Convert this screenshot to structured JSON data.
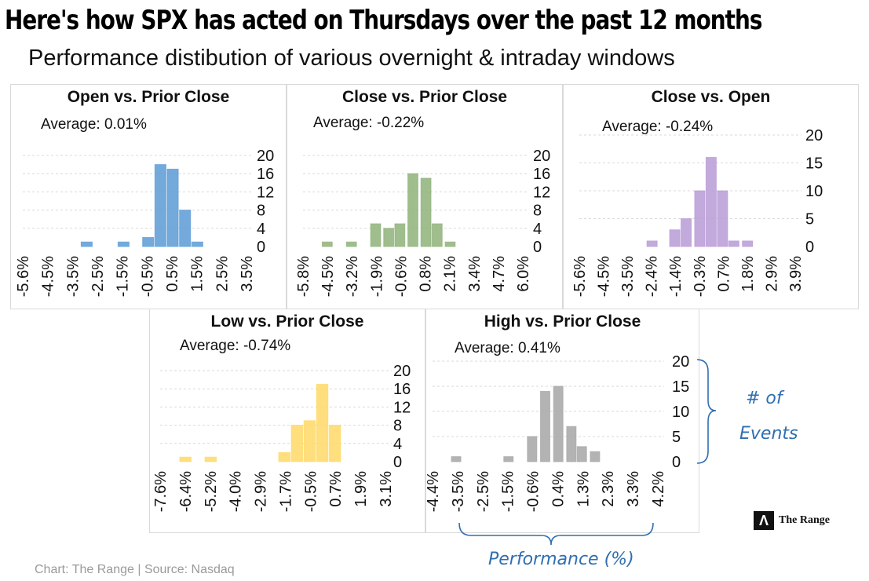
{
  "header": {
    "title": "Here's how SPX has acted on Thursdays over the past 12 months",
    "subtitle": "Performance distibution of various overnight & intraday windows"
  },
  "footer": {
    "source": "Chart: The Range | Source: Nasdaq"
  },
  "annotations": {
    "events_line1": "# of",
    "events_line2": "Events",
    "performance": "Performance (%)"
  },
  "logo": {
    "mark": "Λ",
    "text": "The Range"
  },
  "chart_data": [
    {
      "type": "bar",
      "title": "Open vs. Prior Close",
      "average_label": "Average:",
      "average": "0.01%",
      "color": "#5b9bd5",
      "xticks": [
        "-5.6%",
        "-4.5%",
        "-3.5%",
        "-2.5%",
        "-1.5%",
        "-0.5%",
        "0.5%",
        "1.5%",
        "2.5%",
        "3.5%"
      ],
      "yticks": [
        "0",
        "4",
        "8",
        "12",
        "16",
        "20"
      ],
      "ylim": [
        0,
        20
      ],
      "x": [
        -3.0,
        -2.5,
        -2.0,
        -1.5,
        -1.0,
        -0.5,
        0.0,
        0.5,
        1.0,
        1.5,
        2.0
      ],
      "values": [
        1,
        0,
        0,
        1,
        0,
        2,
        18,
        17,
        8,
        1,
        0
      ]
    },
    {
      "type": "bar",
      "title": "Close vs. Prior Close",
      "average_label": "Average:",
      "average": "-0.22%",
      "color": "#8fb27a",
      "xticks": [
        "-5.8%",
        "-4.5%",
        "-3.2%",
        "-1.9%",
        "-0.6%",
        "0.8%",
        "2.1%",
        "3.4%",
        "4.7%",
        "6.0%"
      ],
      "yticks": [
        "0",
        "4",
        "8",
        "12",
        "16",
        "20"
      ],
      "ylim": [
        0,
        20
      ],
      "x": [
        -4.5,
        -3.8,
        -3.2,
        -1.9,
        -1.2,
        -0.6,
        0.1,
        0.8,
        1.4,
        2.1
      ],
      "values": [
        1,
        0,
        1,
        5,
        4,
        5,
        16,
        15,
        5,
        1
      ]
    },
    {
      "type": "bar",
      "title": "Close vs. Open",
      "average_label": "Average:",
      "average": "-0.24%",
      "color": "#b89bd6",
      "xticks": [
        "-5.6%",
        "-4.5%",
        "-3.5%",
        "-2.4%",
        "-1.4%",
        "-0.3%",
        "0.7%",
        "1.8%",
        "2.9%",
        "3.9%"
      ],
      "yticks": [
        "0",
        "5",
        "10",
        "15",
        "20"
      ],
      "ylim": [
        0,
        20
      ],
      "x": [
        -2.4,
        -1.4,
        -0.9,
        -0.3,
        0.2,
        0.7,
        1.2,
        1.8
      ],
      "values": [
        1,
        3,
        5,
        10,
        16,
        10,
        1,
        1
      ]
    },
    {
      "type": "bar",
      "title": "Low vs. Prior Close",
      "average_label": "Average:",
      "average": "-0.74%",
      "color": "#ffd966",
      "xticks": [
        "-7.6%",
        "-6.4%",
        "-5.2%",
        "-4.0%",
        "-2.9%",
        "-1.7%",
        "-0.5%",
        "0.7%",
        "1.9%",
        "3.1%"
      ],
      "yticks": [
        "0",
        "4",
        "8",
        "12",
        "16",
        "20"
      ],
      "ylim": [
        0,
        20
      ],
      "x": [
        -6.4,
        -5.2,
        -1.7,
        -1.1,
        -0.5,
        0.1,
        0.7
      ],
      "values": [
        1,
        1,
        2,
        8,
        9,
        17,
        8
      ]
    },
    {
      "type": "bar",
      "title": "High vs. Prior Close",
      "average_label": "Average:",
      "average": "0.41%",
      "color": "#a6a6a6",
      "xticks": [
        "-4.4%",
        "-3.5%",
        "-2.5%",
        "-1.5%",
        "-0.6%",
        "0.4%",
        "1.3%",
        "2.3%",
        "3.3%",
        "4.2%"
      ],
      "yticks": [
        "0",
        "5",
        "10",
        "15",
        "20"
      ],
      "ylim": [
        0,
        20
      ],
      "x": [
        -3.5,
        -1.5,
        -0.6,
        -0.1,
        0.4,
        0.9,
        1.3,
        1.8
      ],
      "values": [
        1,
        1,
        5,
        14,
        15,
        7,
        3,
        2
      ]
    }
  ]
}
